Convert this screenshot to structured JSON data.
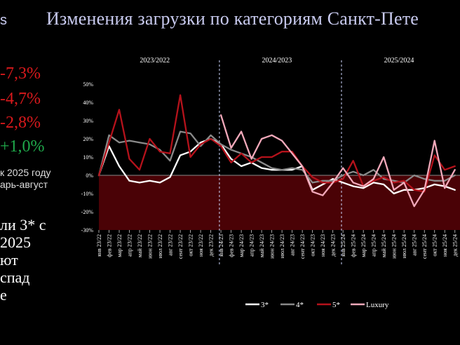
{
  "slide": {
    "title": "Изменения загрузки по категориям Санкт-Пете",
    "corner_text": "s",
    "stats": [
      "-7,3%",
      "-4,7%",
      "-2,8%",
      "+1,0%"
    ],
    "note_lines": [
      "к 2025 году",
      "арь-август"
    ],
    "paragraph_lines": [
      "ли 3* с",
      "2025",
      "ют",
      "спад",
      "е"
    ]
  },
  "chart_data": {
    "type": "line",
    "periods": [
      "2023/2022",
      "2024/2023",
      "2025/2024"
    ],
    "x": [
      "янв 23/22",
      "фев 23/22",
      "мар 23/22",
      "апр 23/22",
      "май 23/22",
      "июн 23/22",
      "июл 23/22",
      "авг 23/22",
      "сент 23/22",
      "окт 23/22",
      "ноя 23/22",
      "дек 23/22",
      "янв 24/23",
      "фев 24/23",
      "мар 24/23",
      "апр 24/23",
      "май 24/23",
      "июн 24/23",
      "июл 24/23",
      "авг 24/23",
      "сент 24/23",
      "окт 24/23",
      "ноя 24/23",
      "дек 24/23",
      "янв 25/24",
      "фев 25/24",
      "мар 25/24",
      "апр 25/24",
      "май 25/24",
      "июн 25/24",
      "июл 25/24",
      "авг 25/24",
      "сент 25/24",
      "окт 25/24",
      "ноя 25/24",
      "дек 25/24"
    ],
    "yticks": [
      "50%",
      "40%",
      "30%",
      "20%",
      "10%",
      "0%",
      "-10%",
      "-20%",
      "-30%"
    ],
    "ylim": [
      -30,
      50
    ],
    "series": [
      {
        "name": "3*",
        "color": "#ffffff",
        "values": [
          0,
          16,
          5,
          -3,
          -4,
          -3,
          -4,
          -1,
          11,
          13,
          18,
          20,
          17,
          9,
          5,
          7,
          4,
          3,
          3,
          3,
          5,
          -8,
          -5,
          -2,
          -4,
          -6,
          -7,
          -4,
          -5,
          -10,
          -8,
          -8,
          -7,
          -5,
          -6,
          -8
        ]
      },
      {
        "name": "4*",
        "color": "#8a8a8a",
        "values": [
          0,
          22,
          18,
          19,
          18,
          17,
          14,
          8,
          24,
          23,
          16,
          22,
          17,
          14,
          12,
          10,
          7,
          4,
          3,
          4,
          3,
          -4,
          -3,
          -3,
          0,
          2,
          0,
          3,
          -2,
          -3,
          -4,
          0,
          -2,
          -3,
          -3,
          0
        ]
      },
      {
        "name": "5*",
        "color": "#b5121b",
        "values": [
          0,
          18,
          36,
          9,
          3,
          20,
          13,
          12,
          44,
          10,
          17,
          20,
          16,
          7,
          12,
          7,
          10,
          10,
          13,
          13,
          5,
          -1,
          -4,
          -4,
          -2,
          8,
          -6,
          -3,
          -1,
          -4,
          -3,
          -8,
          -9,
          11,
          3,
          5
        ]
      },
      {
        "name": "Luxury",
        "color": "#f2a9ba",
        "values": [
          null,
          null,
          null,
          null,
          null,
          null,
          null,
          null,
          null,
          null,
          null,
          null,
          33,
          15,
          24,
          9,
          20,
          22,
          19,
          12,
          5,
          -9,
          -11,
          -4,
          4,
          -4,
          -6,
          -2,
          10,
          -8,
          -4,
          -17,
          -8,
          19,
          -7,
          3
        ]
      }
    ]
  }
}
